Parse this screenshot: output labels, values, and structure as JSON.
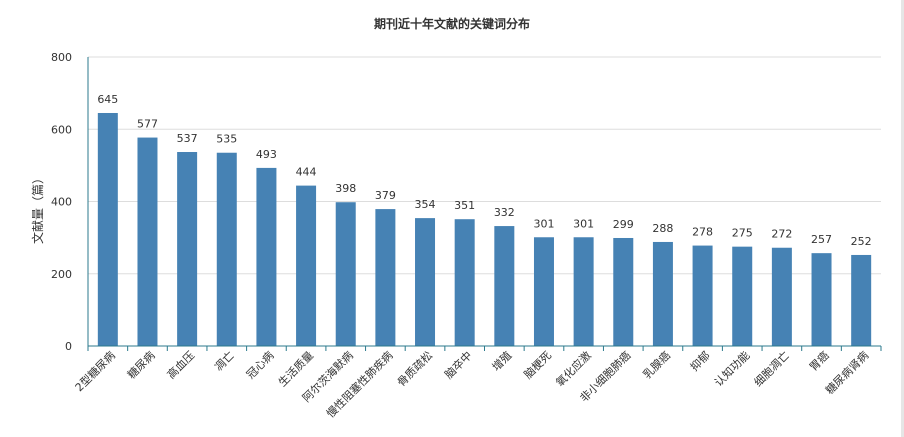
{
  "chart_data": {
    "type": "bar",
    "title": "期刊近十年文献的关键词分布",
    "xlabel": "",
    "ylabel": "文献量（篇）",
    "ylim": [
      0,
      800
    ],
    "yticks": [
      0,
      200,
      400,
      600,
      800
    ],
    "grid": true,
    "legend": "none",
    "bar_color": "#4682b4",
    "categories": [
      "2型糖尿病",
      "糖尿病",
      "高血压",
      "凋亡",
      "冠心病",
      "生活质量",
      "阿尔茨海默病",
      "慢性阻塞性肺疾病",
      "骨质疏松",
      "脑卒中",
      "增殖",
      "脑梗死",
      "氧化应激",
      "非小细胞肺癌",
      "乳腺癌",
      "抑郁",
      "认知功能",
      "细胞凋亡",
      "胃癌",
      "糖尿病肾病"
    ],
    "values": [
      645,
      577,
      537,
      535,
      493,
      444,
      398,
      379,
      354,
      351,
      332,
      301,
      301,
      299,
      288,
      278,
      275,
      272,
      257,
      252
    ]
  }
}
